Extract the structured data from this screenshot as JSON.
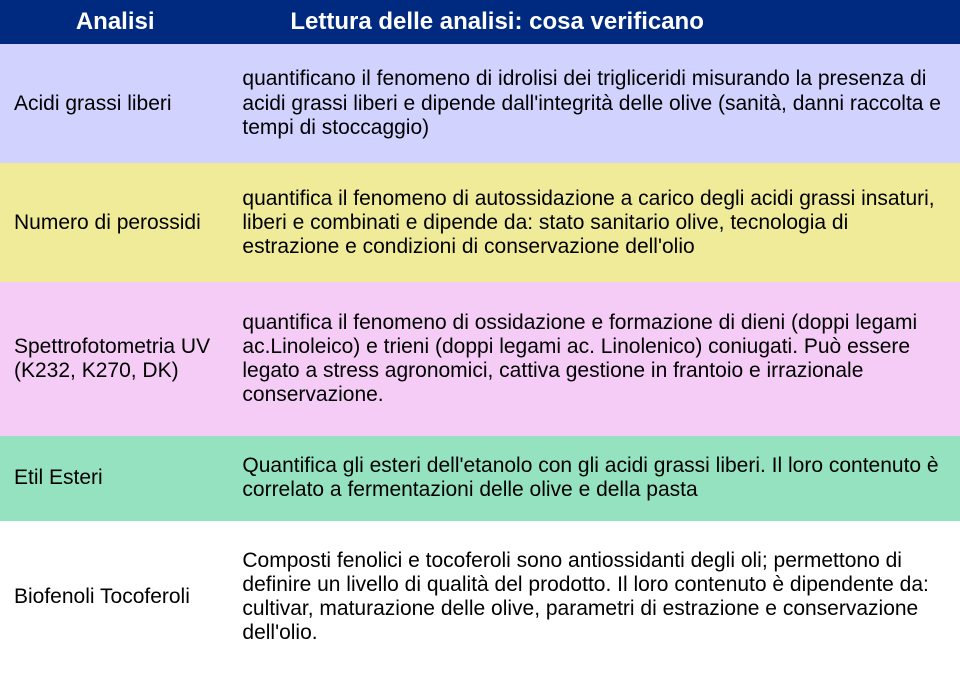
{
  "header": {
    "col1": "Analisi",
    "col2": "Lettura delle analisi: cosa verificano",
    "bg_color": "#002a80"
  },
  "rows": [
    {
      "label": "Acidi grassi liberi",
      "desc": "quantificano il fenomeno di idrolisi dei trigliceridi misurando la presenza di acidi grassi liberi e dipende dall'integrità delle olive (sanità, danni raccolta e tempi di stoccaggio)",
      "bg_color": "#d2d2ff"
    },
    {
      "label": "Numero di perossidi",
      "desc": "quantifica il fenomeno di autossidazione a carico degli acidi grassi insaturi, liberi e combinati e dipende da: stato sanitario olive, tecnologia di estrazione e condizioni di conservazione dell'olio",
      "bg_color": "#f0eb99"
    },
    {
      "label": "Spettrofotometria UV (K232, K270, DK)",
      "desc": "quantifica il fenomeno di ossidazione e formazione di dieni (doppi legami ac.Linoleico) e trieni (doppi legami ac. Linolenico) coniugati. Può essere legato a stress agronomici, cattiva gestione in frantoio e irrazionale conservazione.",
      "bg_color": "#f4ccf6"
    },
    {
      "label": "Etil Esteri",
      "desc": "Quantifica gli esteri dell'etanolo con gli acidi grassi liberi. Il loro contenuto è correlato a fermentazioni delle olive e della pasta",
      "bg_color": "#95e2c1"
    },
    {
      "label": "Biofenoli Tocoferoli",
      "desc": "Composti fenolici e tocoferoli sono antiossidanti degli oli; permettono di definire un livello di qualità del prodotto. Il loro contenuto è dipendente da: cultivar, maturazione delle olive, parametri di estrazione e conservazione dell'olio.",
      "bg_color": "#ffffff"
    }
  ]
}
